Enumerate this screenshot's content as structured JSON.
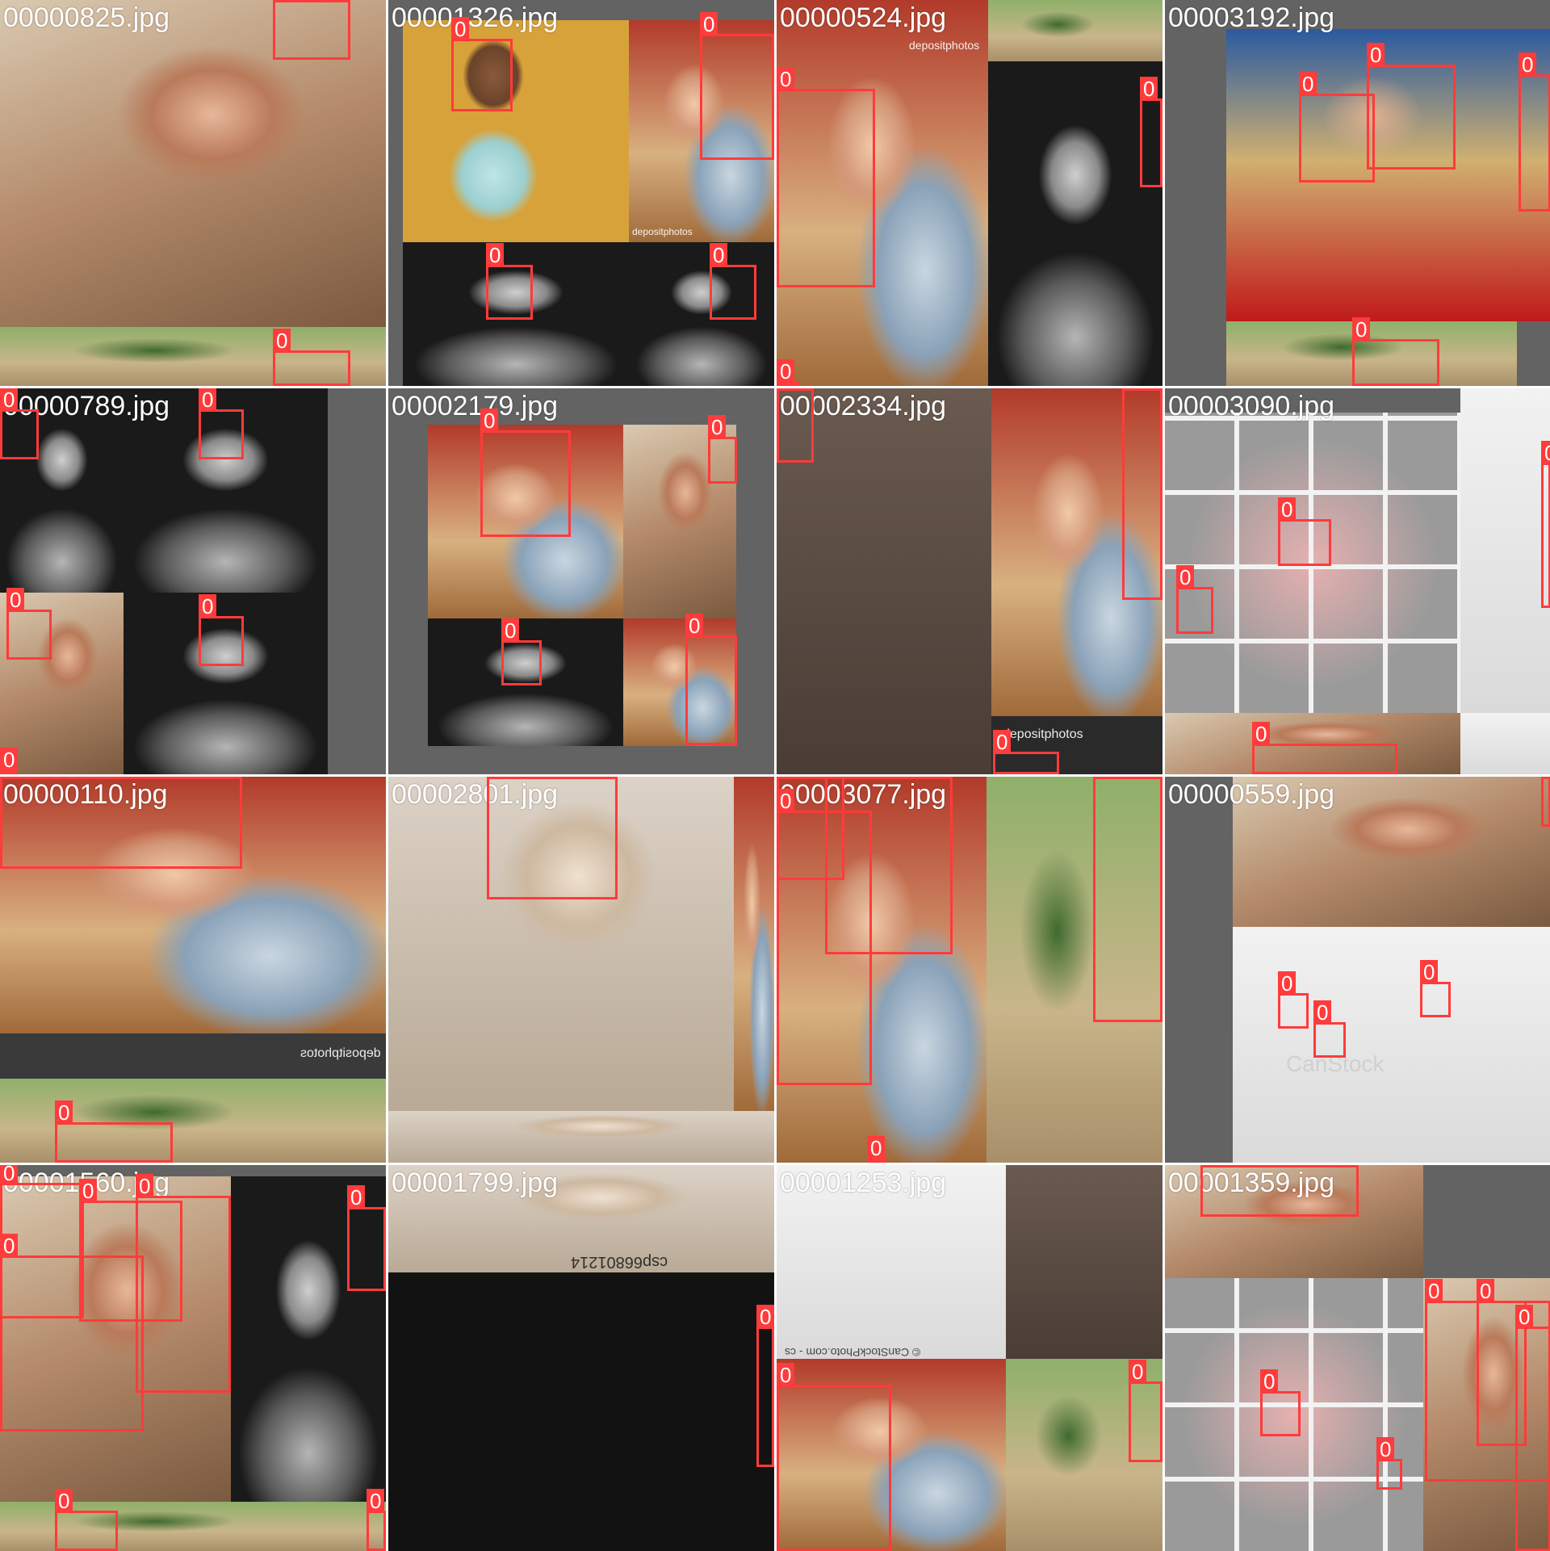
{
  "colors": {
    "box": "#ff3b3b",
    "label_text": "#ffffff",
    "letterbox": "#636363"
  },
  "box_label": "0",
  "tiles": [
    {
      "filename": "00000825.jpg",
      "watermark": ""
    },
    {
      "filename": "00001326.jpg",
      "watermark": "depositphotos"
    },
    {
      "filename": "00000524.jpg",
      "watermark": "depositphotos"
    },
    {
      "filename": "00003192.jpg",
      "watermark": ""
    },
    {
      "filename": "00000789.jpg",
      "watermark": ""
    },
    {
      "filename": "00002179.jpg",
      "watermark": ""
    },
    {
      "filename": "00002334.jpg",
      "watermark": "depositphotos"
    },
    {
      "filename": "00003090.jpg",
      "watermark": ""
    },
    {
      "filename": "00000110.jpg",
      "watermark": "depositphotos"
    },
    {
      "filename": "00002801.jpg",
      "watermark": ""
    },
    {
      "filename": "00003077.jpg",
      "watermark": ""
    },
    {
      "filename": "00000559.jpg",
      "watermark": "CanStock"
    },
    {
      "filename": "00001560.jpg",
      "watermark": ""
    },
    {
      "filename": "00001799.jpg",
      "watermark": "csp66801214"
    },
    {
      "filename": "00001253.jpg",
      "watermark": "© CanStockPhoto.com - cs"
    },
    {
      "filename": "00001359.jpg",
      "watermark": ""
    }
  ]
}
